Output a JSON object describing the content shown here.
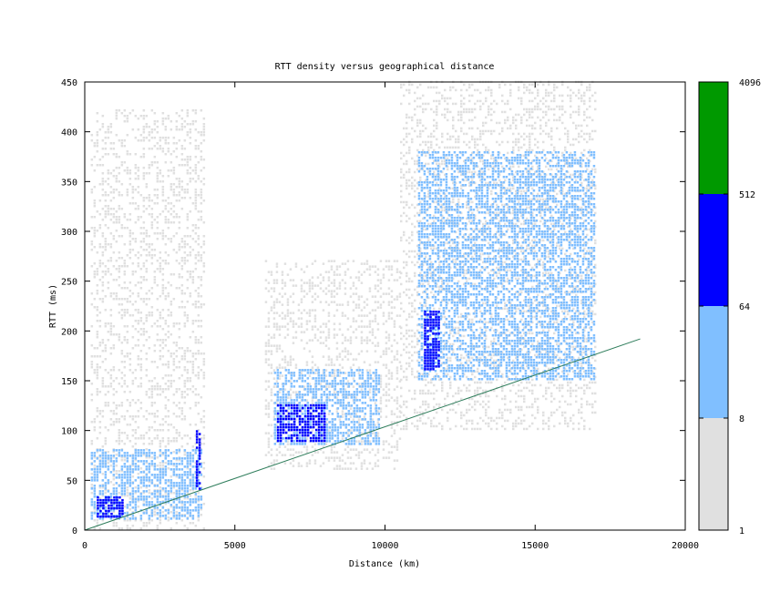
{
  "chart_data": {
    "type": "heatmap",
    "title": "RTT density versus geographical distance",
    "xlabel": "Distance (km)",
    "ylabel": "RTT (ms)",
    "xlim": [
      0,
      20000
    ],
    "ylim": [
      0,
      450
    ],
    "x_ticks": [
      "0",
      "5000",
      "10000",
      "15000",
      "20000"
    ],
    "y_ticks": [
      "0",
      "50",
      "100",
      "150",
      "200",
      "250",
      "300",
      "350",
      "400",
      "450"
    ],
    "grid": false,
    "legend": "right",
    "colorbar": {
      "labels": [
        "1",
        "8",
        "64",
        "512",
        "4096"
      ],
      "bands": [
        {
          "from": 1,
          "to": 8,
          "color": "#e0e0e0"
        },
        {
          "from": 8,
          "to": 64,
          "color": "#80bfff"
        },
        {
          "from": 64,
          "to": 512,
          "color": "#0000ff"
        },
        {
          "from": 512,
          "to": 4096,
          "color": "#009900"
        }
      ]
    },
    "reference_line": {
      "color": "#2e7d5b",
      "points": [
        [
          0,
          0
        ],
        [
          18500,
          192
        ]
      ]
    },
    "density_regions": [
      {
        "x": [
          200,
          4000
        ],
        "y": [
          0,
          420
        ],
        "level": 1
      },
      {
        "x": [
          6000,
          10500
        ],
        "y": [
          60,
          270
        ],
        "level": 1
      },
      {
        "x": [
          10500,
          17000
        ],
        "y": [
          100,
          450
        ],
        "level": 1
      },
      {
        "x": [
          200,
          3900
        ],
        "y": [
          10,
          80
        ],
        "level": 2
      },
      {
        "x": [
          6300,
          9800
        ],
        "y": [
          85,
          160
        ],
        "level": 2
      },
      {
        "x": [
          11100,
          17000
        ],
        "y": [
          150,
          380
        ],
        "level": 2
      },
      {
        "x": [
          400,
          1300
        ],
        "y": [
          12,
          32
        ],
        "level": 3
      },
      {
        "x": [
          6400,
          8000
        ],
        "y": [
          88,
          125
        ],
        "level": 3
      },
      {
        "x": [
          11300,
          11800
        ],
        "y": [
          160,
          220
        ],
        "level": 3
      },
      {
        "x": [
          3700,
          3850
        ],
        "y": [
          40,
          100
        ],
        "level": 3
      }
    ]
  }
}
